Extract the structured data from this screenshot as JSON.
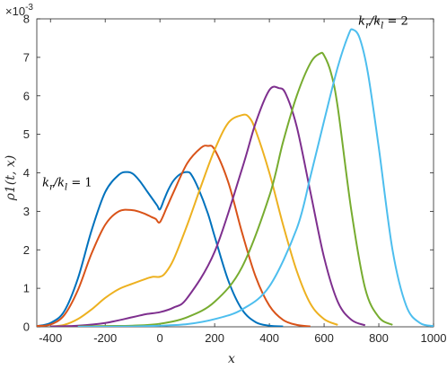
{
  "chart_data": {
    "type": "line",
    "xlabel": "x",
    "ylabel": "ρ1(t, x)",
    "y_exponent_label": "×10",
    "y_exponent_power": "-3",
    "xlim": [
      -450,
      1000
    ],
    "ylim": [
      0,
      8
    ],
    "x_ticks": [
      -400,
      -200,
      0,
      200,
      400,
      600,
      800,
      1000
    ],
    "x_tick_labels": [
      "-400",
      "-200",
      "0",
      "200",
      "400",
      "600",
      "800",
      "1000"
    ],
    "y_ticks": [
      0,
      1,
      2,
      3,
      4,
      5,
      6,
      7,
      8
    ],
    "y_tick_labels": [
      "0",
      "1",
      "2",
      "3",
      "4",
      "5",
      "6",
      "7",
      "8"
    ],
    "grid": false,
    "annotations": [
      {
        "text": "kr/kl = 1",
        "x": -430,
        "y": 3.65
      },
      {
        "text": "kr/kl = 2",
        "x": 725,
        "y": 7.85
      }
    ],
    "series": [
      {
        "color": "#0072BD",
        "x": [
          -450,
          -400,
          -350,
          -300,
          -250,
          -200,
          -150,
          -120,
          -100,
          -75,
          -50,
          -25,
          -10,
          0,
          15,
          30,
          50,
          75,
          100,
          115,
          140,
          175,
          200,
          250,
          300,
          350,
          400,
          450
        ],
        "y": [
          0.02,
          0.1,
          0.4,
          1.25,
          2.5,
          3.5,
          3.95,
          4.02,
          3.98,
          3.8,
          3.55,
          3.3,
          3.15,
          3.05,
          3.3,
          3.55,
          3.8,
          3.97,
          4.02,
          3.95,
          3.6,
          2.95,
          2.35,
          1.2,
          0.45,
          0.12,
          0.03,
          0.01
        ]
      },
      {
        "color": "#D95319",
        "x": [
          -450,
          -400,
          -350,
          -300,
          -250,
          -200,
          -150,
          -100,
          -60,
          -30,
          -15,
          0,
          25,
          50,
          100,
          150,
          175,
          200,
          250,
          300,
          350,
          400,
          450,
          500,
          550
        ],
        "y": [
          0.02,
          0.06,
          0.3,
          0.95,
          1.9,
          2.65,
          3.0,
          3.03,
          2.95,
          2.85,
          2.8,
          2.72,
          3.1,
          3.5,
          4.25,
          4.65,
          4.7,
          4.6,
          3.75,
          2.45,
          1.3,
          0.55,
          0.18,
          0.05,
          0.01
        ]
      },
      {
        "color": "#EDB120",
        "x": [
          -400,
          -350,
          -300,
          -250,
          -200,
          -150,
          -100,
          -50,
          -25,
          0,
          20,
          50,
          100,
          150,
          200,
          250,
          300,
          325,
          350,
          400,
          450,
          500,
          550,
          600,
          650
        ],
        "y": [
          0.01,
          0.05,
          0.2,
          0.45,
          0.75,
          0.98,
          1.12,
          1.25,
          1.3,
          1.3,
          1.4,
          1.75,
          2.65,
          3.65,
          4.6,
          5.3,
          5.5,
          5.45,
          5.1,
          4.0,
          2.65,
          1.45,
          0.6,
          0.2,
          0.05
        ]
      },
      {
        "color": "#7E2F8E",
        "x": [
          -400,
          -300,
          -200,
          -100,
          -50,
          0,
          50,
          100,
          200,
          300,
          350,
          400,
          435,
          460,
          500,
          550,
          600,
          650,
          700,
          750
        ],
        "y": [
          0.01,
          0.03,
          0.1,
          0.25,
          0.33,
          0.38,
          0.5,
          0.75,
          1.95,
          4.1,
          5.3,
          6.15,
          6.2,
          6.05,
          5.2,
          3.5,
          1.8,
          0.65,
          0.18,
          0.04
        ]
      },
      {
        "color": "#77AC30",
        "x": [
          -300,
          -200,
          -100,
          0,
          100,
          200,
          300,
          400,
          450,
          500,
          550,
          585,
          600,
          625,
          650,
          700,
          750,
          800,
          850
        ],
        "y": [
          0.01,
          0.02,
          0.03,
          0.08,
          0.25,
          0.65,
          1.55,
          3.4,
          4.8,
          6.0,
          6.85,
          7.1,
          7.05,
          6.6,
          5.7,
          3.0,
          1.0,
          0.25,
          0.05
        ]
      },
      {
        "color": "#4DBEEE",
        "x": [
          -300,
          -100,
          0,
          100,
          200,
          300,
          400,
          500,
          550,
          600,
          650,
          690,
          705,
          730,
          760,
          800,
          850,
          900,
          950,
          1000
        ],
        "y": [
          0.0,
          0.01,
          0.03,
          0.07,
          0.2,
          0.45,
          1.05,
          2.55,
          3.9,
          5.35,
          6.75,
          7.6,
          7.72,
          7.5,
          6.6,
          4.65,
          2.0,
          0.55,
          0.1,
          0.02
        ]
      }
    ]
  }
}
